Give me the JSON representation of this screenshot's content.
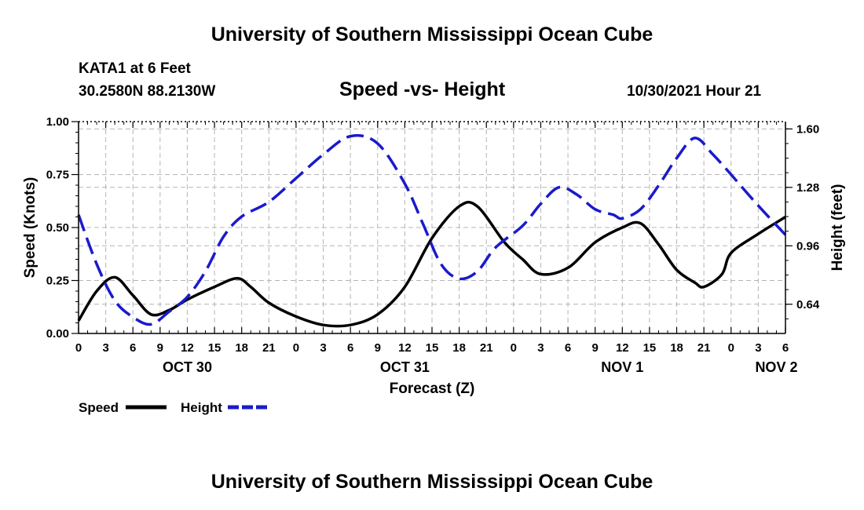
{
  "page": {
    "title_top": "University of Southern Mississippi Ocean Cube",
    "title_bottom": "University of Southern Mississippi Ocean Cube",
    "station": "KATA1 at 6 Feet",
    "coords": "30.2580N  88.2130W",
    "chart_title": "Speed -vs- Height",
    "timestamp": "10/30/2021 Hour 21"
  },
  "colors": {
    "speed": "#000000",
    "height": "#1a1acc",
    "grid": "#b4b4b4"
  },
  "chart_data": {
    "type": "line",
    "title": "Speed -vs- Height",
    "xlabel": "Forecast (Z)",
    "ylabel": "Speed (Knots)",
    "y2label": "Height (feet)",
    "x_unit": "forecast hour from OCT 30 00Z",
    "xlim": [
      0,
      78
    ],
    "ylim": [
      0,
      1.0
    ],
    "y2lim": [
      0.48,
      1.64
    ],
    "x_tick_hours": [
      0,
      3,
      6,
      9,
      12,
      15,
      18,
      21,
      24,
      27,
      30,
      33,
      36,
      39,
      42,
      45,
      48,
      51,
      54,
      57,
      60,
      63,
      66,
      69,
      72,
      75,
      78
    ],
    "x_tick_labels": [
      "0",
      "3",
      "6",
      "9",
      "12",
      "15",
      "18",
      "21",
      "0",
      "3",
      "6",
      "9",
      "12",
      "15",
      "18",
      "21",
      "0",
      "3",
      "6",
      "9",
      "12",
      "15",
      "18",
      "21",
      "0",
      "3",
      "6"
    ],
    "y_ticks": [
      0,
      0.25,
      0.5,
      0.75,
      1.0
    ],
    "y_tick_labels": [
      "0.00",
      "0.25",
      "0.50",
      "0.75",
      "1.00"
    ],
    "y2_ticks": [
      0.64,
      0.96,
      1.28,
      1.6
    ],
    "y2_tick_labels": [
      "0.64",
      "0.96",
      "1.28",
      "1.60"
    ],
    "date_labels": [
      {
        "hour": 12,
        "label": "OCT 30"
      },
      {
        "hour": 36,
        "label": "OCT 31"
      },
      {
        "hour": 60,
        "label": "NOV 1"
      },
      {
        "hour": 77,
        "label": "NOV 2"
      }
    ],
    "legend": [
      {
        "name": "Speed",
        "style": "solid"
      },
      {
        "name": "Height",
        "style": "dashed"
      }
    ],
    "series": [
      {
        "name": "Speed",
        "axis": "left",
        "style": "solid",
        "x": [
          0,
          2,
          4,
          6,
          8,
          10,
          12,
          15,
          17.5,
          19,
          21,
          24,
          27,
          30,
          33,
          36,
          39,
          42,
          44,
          47,
          49,
          51,
          54,
          57,
          60,
          62,
          64,
          66,
          68,
          69,
          71,
          72,
          75,
          78
        ],
        "y": [
          0.06,
          0.2,
          0.265,
          0.18,
          0.09,
          0.11,
          0.16,
          0.22,
          0.26,
          0.22,
          0.145,
          0.08,
          0.04,
          0.04,
          0.09,
          0.22,
          0.45,
          0.6,
          0.6,
          0.43,
          0.35,
          0.28,
          0.31,
          0.43,
          0.5,
          0.52,
          0.42,
          0.3,
          0.24,
          0.22,
          0.28,
          0.38,
          0.47,
          0.55
        ]
      },
      {
        "name": "Height",
        "axis": "right",
        "style": "dashed",
        "x": [
          0,
          2,
          4,
          6,
          8,
          10,
          12,
          14,
          16,
          18,
          21,
          24,
          27,
          30,
          33,
          36,
          38,
          40,
          42,
          44,
          46,
          49,
          51,
          53,
          55,
          57,
          59,
          60,
          62,
          64,
          66,
          68,
          70,
          72,
          75,
          78
        ],
        "y": [
          1.13,
          0.86,
          0.66,
          0.57,
          0.53,
          0.6,
          0.68,
          0.82,
          1.01,
          1.12,
          1.2,
          1.33,
          1.46,
          1.56,
          1.52,
          1.3,
          1.08,
          0.86,
          0.78,
          0.82,
          0.95,
          1.07,
          1.19,
          1.28,
          1.24,
          1.16,
          1.13,
          1.11,
          1.16,
          1.29,
          1.44,
          1.55,
          1.46,
          1.35,
          1.18,
          1.02
        ]
      }
    ]
  }
}
